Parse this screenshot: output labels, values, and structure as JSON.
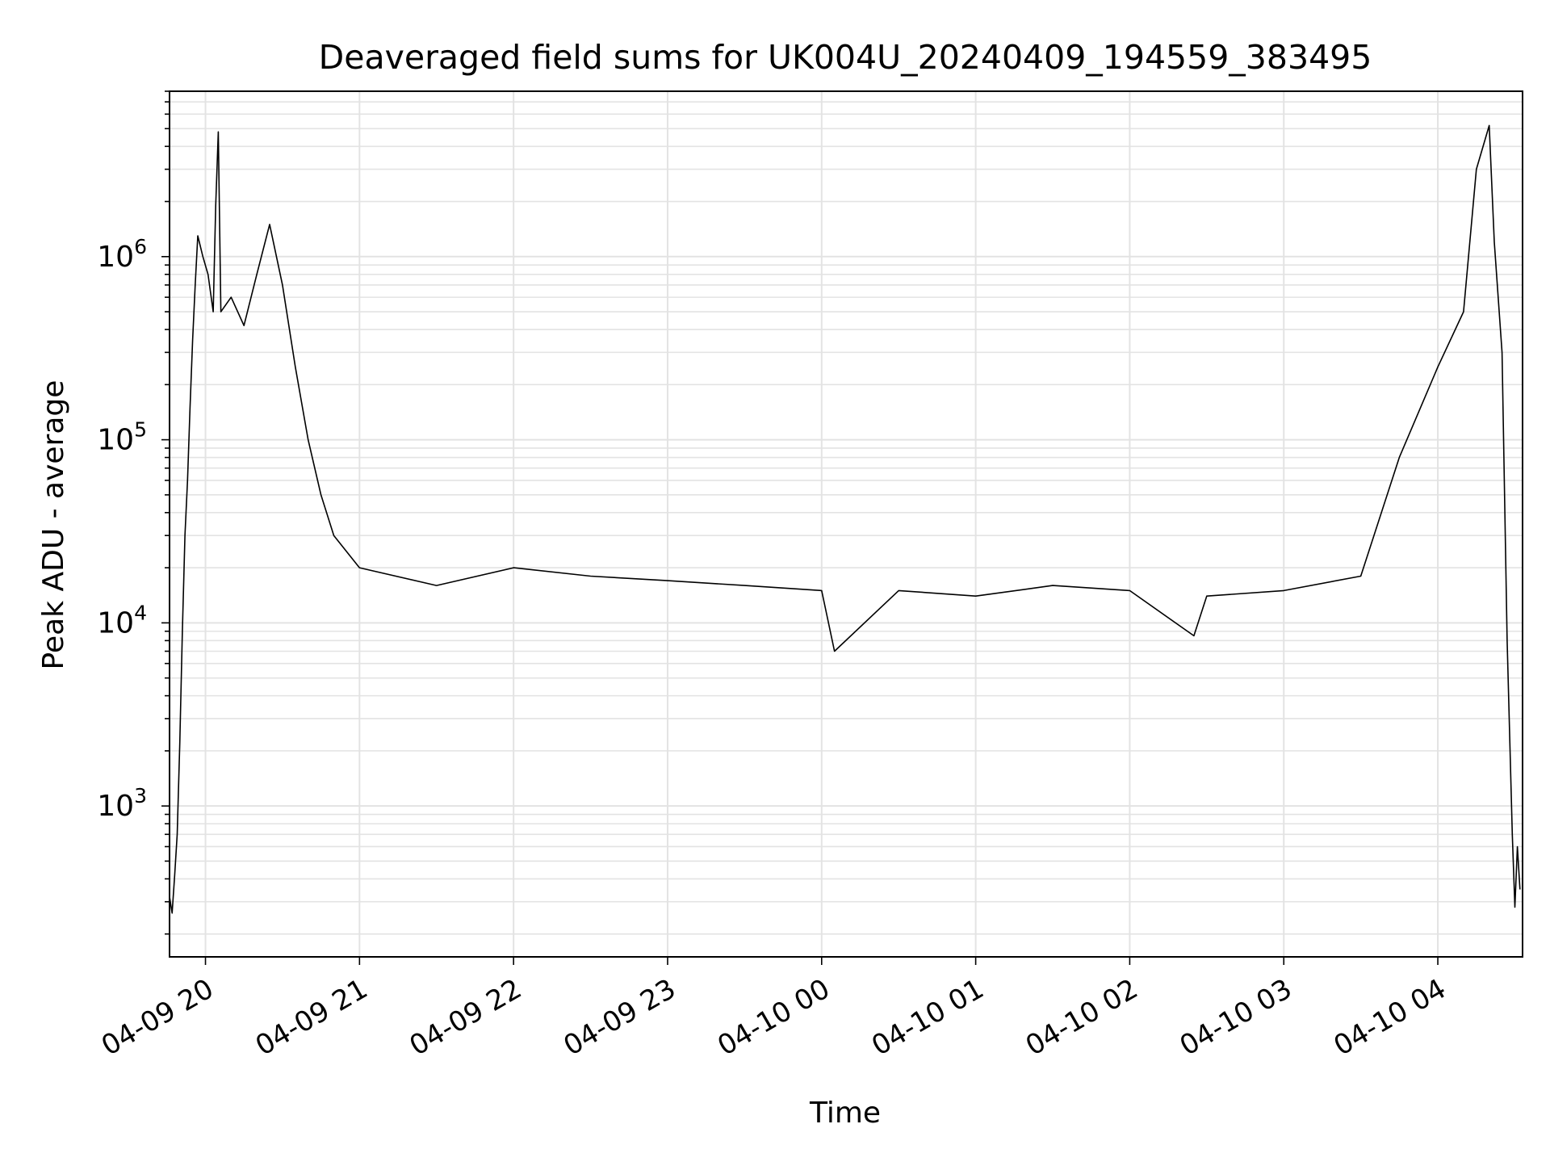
{
  "chart_data": {
    "type": "line",
    "title": "Deaveraged field sums for UK004U_20240409_194559_383495",
    "xlabel": "Time",
    "ylabel": "Peak ADU - average",
    "yscale": "log",
    "grid": true,
    "x_range": [
      "2024-04-09 19:46",
      "2024-04-10 04:33"
    ],
    "y_range": [
      150,
      8000000
    ],
    "x_ticks": [
      {
        "time": "2024-04-09 20:00",
        "label": "04-09 20"
      },
      {
        "time": "2024-04-09 21:00",
        "label": "04-09 21"
      },
      {
        "time": "2024-04-09 22:00",
        "label": "04-09 22"
      },
      {
        "time": "2024-04-09 23:00",
        "label": "04-09 23"
      },
      {
        "time": "2024-04-10 00:00",
        "label": "04-10 00"
      },
      {
        "time": "2024-04-10 01:00",
        "label": "04-10 01"
      },
      {
        "time": "2024-04-10 02:00",
        "label": "04-10 02"
      },
      {
        "time": "2024-04-10 03:00",
        "label": "04-10 03"
      },
      {
        "time": "2024-04-10 04:00",
        "label": "04-10 04"
      }
    ],
    "y_ticks": [
      {
        "value": 1000,
        "base": "10",
        "exp": "3"
      },
      {
        "value": 10000,
        "base": "10",
        "exp": "4"
      },
      {
        "value": 100000,
        "base": "10",
        "exp": "5"
      },
      {
        "value": 1000000,
        "base": "10",
        "exp": "6"
      }
    ],
    "series": [
      {
        "color": "#000000",
        "points": [
          [
            "2024-04-09 19:46",
            320
          ],
          [
            "2024-04-09 19:47",
            260
          ],
          [
            "2024-04-09 19:48",
            420
          ],
          [
            "2024-04-09 19:49",
            700
          ],
          [
            "2024-04-09 19:50",
            2200
          ],
          [
            "2024-04-09 19:51",
            9000
          ],
          [
            "2024-04-09 19:52",
            30000
          ],
          [
            "2024-04-09 19:53",
            60000
          ],
          [
            "2024-04-09 19:54",
            150000
          ],
          [
            "2024-04-09 19:55",
            350000
          ],
          [
            "2024-04-09 19:56",
            700000
          ],
          [
            "2024-04-09 19:57",
            1300000
          ],
          [
            "2024-04-09 19:59",
            1000000
          ],
          [
            "2024-04-09 20:01",
            800000
          ],
          [
            "2024-04-09 20:03",
            500000
          ],
          [
            "2024-04-09 20:04",
            1900000
          ],
          [
            "2024-04-09 20:05",
            4800000
          ],
          [
            "2024-04-09 20:06",
            500000
          ],
          [
            "2024-04-09 20:10",
            600000
          ],
          [
            "2024-04-09 20:15",
            420000
          ],
          [
            "2024-04-09 20:20",
            800000
          ],
          [
            "2024-04-09 20:25",
            1500000
          ],
          [
            "2024-04-09 20:30",
            700000
          ],
          [
            "2024-04-09 20:35",
            250000
          ],
          [
            "2024-04-09 20:40",
            100000
          ],
          [
            "2024-04-09 20:45",
            50000
          ],
          [
            "2024-04-09 20:50",
            30000
          ],
          [
            "2024-04-09 21:00",
            20000
          ],
          [
            "2024-04-09 21:30",
            16000
          ],
          [
            "2024-04-09 22:00",
            20000
          ],
          [
            "2024-04-09 22:30",
            18000
          ],
          [
            "2024-04-09 23:00",
            17000
          ],
          [
            "2024-04-09 23:30",
            16000
          ],
          [
            "2024-04-10 00:00",
            15000
          ],
          [
            "2024-04-10 00:05",
            7000
          ],
          [
            "2024-04-10 00:30",
            15000
          ],
          [
            "2024-04-10 01:00",
            14000
          ],
          [
            "2024-04-10 01:30",
            16000
          ],
          [
            "2024-04-10 02:00",
            15000
          ],
          [
            "2024-04-10 02:25",
            8500
          ],
          [
            "2024-04-10 02:30",
            14000
          ],
          [
            "2024-04-10 03:00",
            15000
          ],
          [
            "2024-04-10 03:30",
            18000
          ],
          [
            "2024-04-10 03:45",
            80000
          ],
          [
            "2024-04-10 04:00",
            250000
          ],
          [
            "2024-04-10 04:10",
            500000
          ],
          [
            "2024-04-10 04:15",
            3000000
          ],
          [
            "2024-04-10 04:20",
            5200000
          ],
          [
            "2024-04-10 04:22",
            1200000
          ],
          [
            "2024-04-10 04:25",
            300000
          ],
          [
            "2024-04-10 04:27",
            8000
          ],
          [
            "2024-04-10 04:29",
            700
          ],
          [
            "2024-04-10 04:30",
            280
          ],
          [
            "2024-04-10 04:31",
            600
          ],
          [
            "2024-04-10 04:32",
            350
          ]
        ]
      }
    ]
  }
}
